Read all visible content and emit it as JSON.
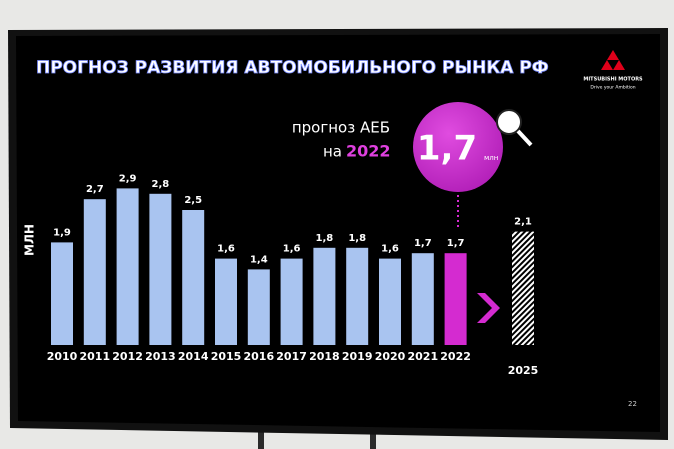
{
  "title": "ПРОГНОЗ РАЗВИТИЯ АВТОМОБИЛЬНОГО РЫНКА РФ",
  "logo": {
    "brand": "MITSUBISHI MOTORS",
    "slogan": "Drive your Ambition"
  },
  "page_number": "22",
  "chart_data": {
    "type": "bar",
    "y_label": "МЛН",
    "categories": [
      "2010",
      "2011",
      "2012",
      "2013",
      "2014",
      "2015",
      "2016",
      "2017",
      "2018",
      "2019",
      "2020",
      "2021",
      "2022",
      "2025"
    ],
    "values": [
      1.9,
      2.7,
      2.9,
      2.8,
      2.5,
      1.6,
      1.4,
      1.6,
      1.8,
      1.8,
      1.6,
      1.7,
      1.7,
      2.1
    ],
    "value_labels": [
      "1,9",
      "2,7",
      "2,9",
      "2,8",
      "2,5",
      "1,6",
      "1,4",
      "1,6",
      "1,8",
      "1,8",
      "1,6",
      "1,7",
      "1,7",
      "2,1"
    ],
    "colors": [
      "#a9c4f0",
      "#a9c4f0",
      "#a9c4f0",
      "#a9c4f0",
      "#a9c4f0",
      "#a9c4f0",
      "#a9c4f0",
      "#a9c4f0",
      "#a9c4f0",
      "#a9c4f0",
      "#a9c4f0",
      "#a9c4f0",
      "#d42bd0",
      "#ffffff"
    ],
    "hatched": [
      false,
      false,
      false,
      false,
      false,
      false,
      false,
      false,
      false,
      false,
      false,
      false,
      false,
      true
    ],
    "annotation": {
      "text": "прогноз АЕБ",
      "prefix": "на",
      "year": "2022",
      "value": 1.7,
      "value_label": "1,7",
      "unit": "млн"
    }
  }
}
